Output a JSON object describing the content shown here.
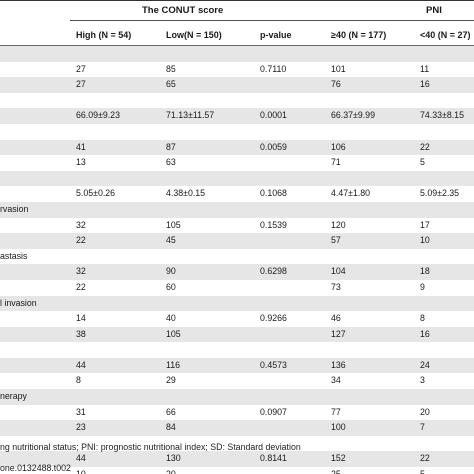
{
  "groups": {
    "conut": "The CONUT score",
    "pni": "PNI"
  },
  "columns": {
    "high": "High (N = 54)",
    "low": "Low(N = 150)",
    "pvalue": "p-value",
    "ge40": "≥40 (N = 177)",
    "lt40": "<40 (N = 27)"
  },
  "rows": [
    {
      "label": "",
      "high": "",
      "low": "",
      "p": "",
      "ge40": "",
      "lt40": ""
    },
    {
      "label": "",
      "high": "27",
      "low": "85",
      "p": "0.7110",
      "ge40": "101",
      "lt40": "11"
    },
    {
      "label": "",
      "high": "27",
      "low": "65",
      "p": "",
      "ge40": "76",
      "lt40": "16"
    },
    {
      "label": "",
      "high": "",
      "low": "",
      "p": "",
      "ge40": "",
      "lt40": ""
    },
    {
      "label": "",
      "high": "66.09±9.23",
      "low": "71.13±11.57",
      "p": "0.0001",
      "ge40": "66.37±9.99",
      "lt40": "74.33±8.15"
    },
    {
      "label": "",
      "high": "",
      "low": "",
      "p": "",
      "ge40": "",
      "lt40": ""
    },
    {
      "label": "",
      "high": "41",
      "low": "87",
      "p": "0.0059",
      "ge40": "106",
      "lt40": "22"
    },
    {
      "label": "",
      "high": "13",
      "low": "63",
      "p": "",
      "ge40": "71",
      "lt40": "5"
    },
    {
      "label": "",
      "high": "",
      "low": "",
      "p": "",
      "ge40": "",
      "lt40": ""
    },
    {
      "label": "",
      "high": "5.05±0.26",
      "low": "4.38±0.15",
      "p": "0.1068",
      "ge40": "4.47±1.80",
      "lt40": "5.09±2.35"
    },
    {
      "label": "rvasion",
      "high": "",
      "low": "",
      "p": "",
      "ge40": "",
      "lt40": ""
    },
    {
      "label": "",
      "high": "32",
      "low": "105",
      "p": "0.1539",
      "ge40": "120",
      "lt40": "17"
    },
    {
      "label": "",
      "high": "22",
      "low": "45",
      "p": "",
      "ge40": "57",
      "lt40": "10"
    },
    {
      "label": "astasis",
      "high": "",
      "low": "",
      "p": "",
      "ge40": "",
      "lt40": ""
    },
    {
      "label": "",
      "high": "32",
      "low": "90",
      "p": "0.6298",
      "ge40": "104",
      "lt40": "18"
    },
    {
      "label": "",
      "high": "22",
      "low": "60",
      "p": "",
      "ge40": "73",
      "lt40": "9"
    },
    {
      "label": "l invasion",
      "high": "",
      "low": "",
      "p": "",
      "ge40": "",
      "lt40": ""
    },
    {
      "label": "",
      "high": "14",
      "low": "40",
      "p": "0.9266",
      "ge40": "46",
      "lt40": "8"
    },
    {
      "label": "",
      "high": "38",
      "low": "105",
      "p": "",
      "ge40": "127",
      "lt40": "16"
    },
    {
      "label": "",
      "high": "",
      "low": "",
      "p": "",
      "ge40": "",
      "lt40": ""
    },
    {
      "label": "",
      "high": "44",
      "low": "116",
      "p": "0.4573",
      "ge40": "136",
      "lt40": "24"
    },
    {
      "label": "",
      "high": "8",
      "low": "29",
      "p": "",
      "ge40": "34",
      "lt40": "3"
    },
    {
      "label": "nerapy",
      "high": "",
      "low": "",
      "p": "",
      "ge40": "",
      "lt40": ""
    },
    {
      "label": "",
      "high": "31",
      "low": "66",
      "p": "0.0907",
      "ge40": "77",
      "lt40": "20"
    },
    {
      "label": "",
      "high": "23",
      "low": "84",
      "p": "",
      "ge40": "100",
      "lt40": "7"
    },
    {
      "label": "",
      "high": "",
      "low": "",
      "p": "",
      "ge40": "",
      "lt40": ""
    },
    {
      "label": "",
      "high": "44",
      "low": "130",
      "p": "0.8141",
      "ge40": "152",
      "lt40": "22"
    },
    {
      "label": "",
      "high": "10",
      "low": "20",
      "p": "",
      "ge40": "25",
      "lt40": "5"
    }
  ],
  "footnote": "ng nutritional status; PNI: prognostic nutritional index; SD: Standard deviation",
  "doi": "one.0132488.t002"
}
